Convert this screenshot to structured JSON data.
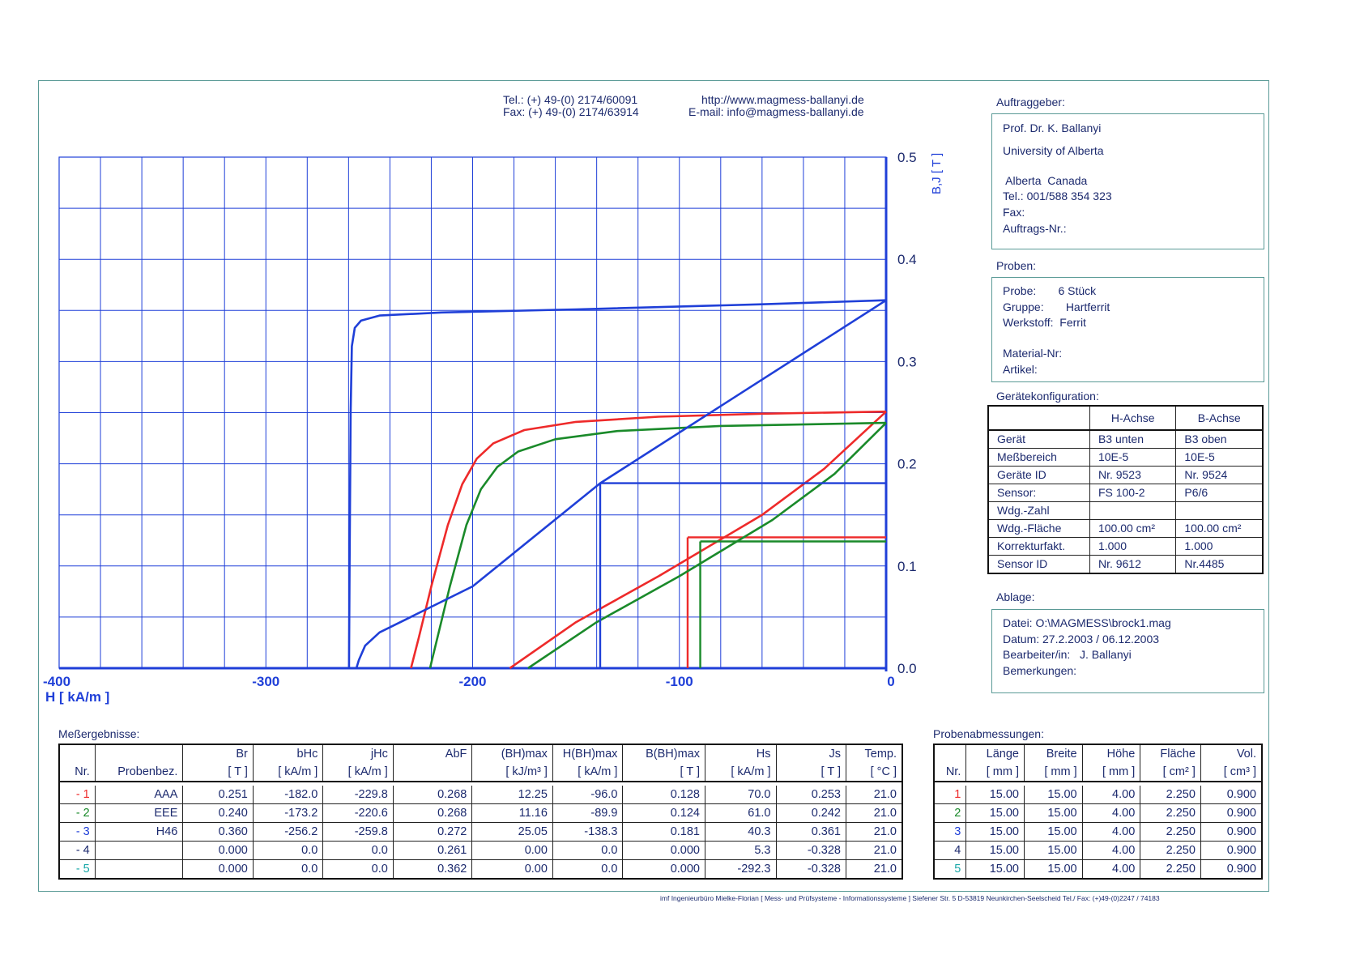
{
  "contact": {
    "tel": "Tel.: (+) 49-(0) 2174/60091",
    "fax": "Fax: (+) 49-(0) 2174/63914",
    "web": "http://www.magmess-ballanyi.de",
    "email": "E-mail: info@magmess-ballanyi.de"
  },
  "chart_data": {
    "type": "line",
    "xlabel": "H [ kA/m ]",
    "ylabel": "B,J [ T ]",
    "xlim": [
      -400,
      0
    ],
    "ylim": [
      0,
      0.5
    ],
    "x_ticks": [
      "-400",
      "-300",
      "-200",
      "-100",
      "0"
    ],
    "y_ticks": [
      "0.0",
      "0.1",
      "0.2",
      "0.3",
      "0.4",
      "0.5"
    ],
    "grid": true,
    "colors": {
      "axis": "#1f3fd8",
      "grid": "#1f3fd8",
      "s1": "#ee2a2a",
      "s2": "#1a8a2a",
      "s3": "#1f3fd8"
    },
    "series": [
      {
        "id": "1",
        "color": "#ee2a2a",
        "J": [
          [
            -229.8,
            0
          ],
          [
            -226,
            0.03
          ],
          [
            -220,
            0.08
          ],
          [
            -212,
            0.14
          ],
          [
            -205,
            0.18
          ],
          [
            -198,
            0.205
          ],
          [
            -190,
            0.22
          ],
          [
            -175,
            0.233
          ],
          [
            -150,
            0.241
          ],
          [
            -110,
            0.246
          ],
          [
            -60,
            0.249
          ],
          [
            0,
            0.251
          ]
        ],
        "B": [
          [
            -182,
            0
          ],
          [
            -150,
            0.045
          ],
          [
            -110,
            0.09
          ],
          [
            -60,
            0.15
          ],
          [
            -30,
            0.195
          ],
          [
            0,
            0.251
          ]
        ],
        "bhmax_point": [
          -96.0,
          0.128
        ]
      },
      {
        "id": "2",
        "color": "#1a8a2a",
        "J": [
          [
            -220.6,
            0
          ],
          [
            -217,
            0.03
          ],
          [
            -211,
            0.08
          ],
          [
            -203,
            0.14
          ],
          [
            -196,
            0.175
          ],
          [
            -188,
            0.197
          ],
          [
            -178,
            0.212
          ],
          [
            -160,
            0.224
          ],
          [
            -130,
            0.232
          ],
          [
            -80,
            0.237
          ],
          [
            0,
            0.24
          ]
        ],
        "B": [
          [
            -173.2,
            0
          ],
          [
            -140,
            0.045
          ],
          [
            -100,
            0.09
          ],
          [
            -55,
            0.145
          ],
          [
            -25,
            0.19
          ],
          [
            0,
            0.24
          ]
        ],
        "bhmax_point": [
          -89.9,
          0.124
        ]
      },
      {
        "id": "3",
        "color": "#1f3fd8",
        "J": [
          [
            -259.8,
            0
          ],
          [
            -259.5,
            0.1
          ],
          [
            -259,
            0.25
          ],
          [
            -258.4,
            0.315
          ],
          [
            -257,
            0.333
          ],
          [
            -254,
            0.34
          ],
          [
            -245,
            0.345
          ],
          [
            -215,
            0.348
          ],
          [
            -150,
            0.351
          ],
          [
            -60,
            0.356
          ],
          [
            0,
            0.36
          ]
        ],
        "B": [
          [
            -256.2,
            0
          ],
          [
            -255,
            0.008
          ],
          [
            -252,
            0.022
          ],
          [
            -245,
            0.035
          ],
          [
            -230,
            0.05
          ],
          [
            -200,
            0.08
          ],
          [
            -138.3,
            0.181
          ],
          [
            0,
            0.36
          ]
        ],
        "bhmax_point": [
          -138.3,
          0.181
        ]
      }
    ]
  },
  "auftraggeber": {
    "title": "Auftraggeber:",
    "lines": [
      "Prof. Dr. K. Ballanyi",
      "University of Alberta",
      " Alberta  Canada",
      "Tel.: 001/588 354 323",
      "Fax:",
      "Auftrags-Nr.:"
    ]
  },
  "proben": {
    "title": "Proben:",
    "lines": [
      "Probe:       6 Stück",
      "Gruppe:       Hartferrit",
      "Werkstoff:  Ferrit",
      "Material-Nr:",
      "Artikel:"
    ]
  },
  "config": {
    "title": "Gerätekonfiguration:",
    "headers": [
      "",
      "H-Achse",
      "B-Achse"
    ],
    "rows": [
      [
        "Gerät",
        "B3 unten",
        "B3 oben"
      ],
      [
        "Meßbereich",
        "10E-5",
        "10E-5"
      ],
      [
        "Geräte ID",
        "Nr. 9523",
        "Nr. 9524"
      ],
      [
        "Sensor:",
        "FS 100-2",
        "P6/6"
      ],
      [
        "Wdg.-Zahl",
        "",
        ""
      ],
      [
        "Wdg.-Fläche",
        " 100.00 cm²",
        " 100.00 cm²"
      ],
      [
        "Korrekturfakt.",
        "1.000",
        "1.000"
      ],
      [
        "Sensor ID",
        "Nr. 9612",
        "Nr.4485"
      ]
    ]
  },
  "ablage": {
    "title": "Ablage:",
    "lines": [
      "Datei: O:\\MAGMESS\\brock1.mag",
      "Datum: 27.2.2003 / 06.12.2003",
      "Bearbeiter/in:   J. Ballanyi",
      "Bemerkungen:"
    ]
  },
  "results": {
    "title": "Meßergebnisse:",
    "header1": [
      "",
      "",
      "Br",
      "bHc",
      "jHc",
      "AbF",
      "(BH)max",
      "H(BH)max",
      "B(BH)max",
      "Hs",
      "Js",
      "Temp."
    ],
    "header2": [
      "Nr.",
      "Probenbez.",
      "[ T ]",
      "[ kA/m ]",
      "[ kA/m ]",
      "",
      "[ kJ/m³ ]",
      "[ kA/m ]",
      "[ T ]",
      "[ kA/m ]",
      "[ T ]",
      "[ °C ]"
    ],
    "rows": [
      [
        "- 1",
        "AAA",
        "0.251",
        "-182.0",
        "-229.8",
        "0.268",
        "12.25",
        "-96.0",
        "0.128",
        "70.0",
        "0.253",
        "21.0"
      ],
      [
        "- 2",
        "EEE",
        "0.240",
        "-173.2",
        "-220.6",
        "0.268",
        "11.16",
        "-89.9",
        "0.124",
        "61.0",
        "0.242",
        "21.0"
      ],
      [
        "- 3",
        "H46",
        "0.360",
        "-256.2",
        "-259.8",
        "0.272",
        "25.05",
        "-138.3",
        "0.181",
        "40.3",
        "0.361",
        "21.0"
      ],
      [
        "- 4",
        "",
        "0.000",
        "0.0",
        "0.0",
        "0.261",
        "0.00",
        "0.0",
        "0.000",
        "5.3",
        "-0.328",
        "21.0"
      ],
      [
        "- 5",
        "",
        "0.000",
        "0.0",
        "0.0",
        "0.362",
        "0.00",
        "0.0",
        "0.000",
        "-292.3",
        "-0.328",
        "21.0"
      ]
    ],
    "nr_colors": [
      "#ee2a2a",
      "#1a8a2a",
      "#1f3fd8",
      "#1c2a6e",
      "#1aa8a8"
    ]
  },
  "dimensions": {
    "title": "Probenabmessungen:",
    "header1": [
      "",
      "Länge",
      "Breite",
      "Höhe",
      "Fläche",
      "Vol."
    ],
    "header2": [
      "Nr.",
      "[ mm ]",
      "[ mm ]",
      "[ mm ]",
      "[ cm² ]",
      "[ cm³ ]"
    ],
    "rows": [
      [
        "1",
        "15.00",
        "15.00",
        "4.00",
        "2.250",
        "0.900"
      ],
      [
        "2",
        "15.00",
        "15.00",
        "4.00",
        "2.250",
        "0.900"
      ],
      [
        "3",
        "15.00",
        "15.00",
        "4.00",
        "2.250",
        "0.900"
      ],
      [
        "4",
        "15.00",
        "15.00",
        "4.00",
        "2.250",
        "0.900"
      ],
      [
        "5",
        "15.00",
        "15.00",
        "4.00",
        "2.250",
        "0.900"
      ]
    ]
  },
  "footer": "imf Ingenieurbüro Mielke-Florian  [ Mess- und Prüfsysteme - Informationssysteme ]  Siefener Str. 5  D-53819 Neunkirchen-Seelscheid  Tel./ Fax: (+)49-(0)2247 / 74183"
}
